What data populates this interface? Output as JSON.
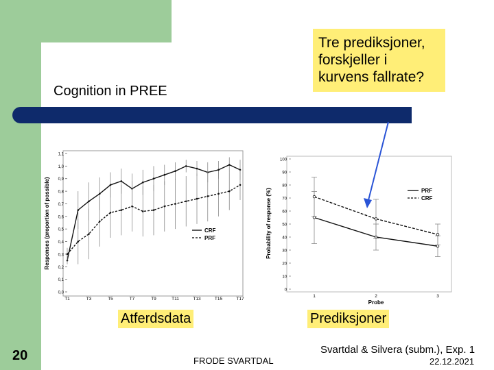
{
  "slide": {
    "title": "Cognition in PREE",
    "callout": "Tre prediksjoner, forskjeller i kurvens fallrate?",
    "left_label": "Atferdsdata",
    "right_label": "Prediksjoner",
    "slide_number": "20",
    "footer": "FRODE SVARTDAL",
    "citation": "Svartdal & Silvera (subm.), Exp. 1",
    "date": "22.12.2021"
  },
  "colors": {
    "green": "#9dcc9a",
    "navy": "#0e2a6b",
    "highlight": "#ffee77",
    "arrow": "#2a54d6"
  },
  "chart_data": [
    {
      "type": "line",
      "ylabel": "Responses (proportion of possible)",
      "xlabel": "",
      "categories": [
        "T1",
        "T3",
        "T5",
        "T7",
        "T9",
        "T11",
        "T13",
        "T15",
        "T17"
      ],
      "y_ticks": [
        "0,0",
        "0,1",
        "0,2",
        "0,3",
        "0,4",
        "0,5",
        "0,6",
        "0,7",
        "0,8",
        "0,9",
        "1,0",
        "1,1"
      ],
      "ylim": [
        0,
        1.1
      ],
      "legend": "middle-right",
      "series": [
        {
          "name": "CRF",
          "style": "solid",
          "x": [
            1,
            2,
            3,
            4,
            5,
            6,
            7,
            8,
            9,
            10,
            11,
            12,
            13,
            14,
            15,
            16,
            17
          ],
          "values": [
            0.25,
            0.65,
            0.72,
            0.78,
            0.85,
            0.88,
            0.82,
            0.87,
            0.9,
            0.93,
            0.96,
            1.0,
            0.98,
            0.95,
            0.97,
            1.01,
            0.97
          ],
          "err": [
            0.03,
            0.15,
            0.15,
            0.13,
            0.1,
            0.1,
            0.12,
            0.1,
            0.1,
            0.08,
            0.07,
            0.05,
            0.06,
            0.08,
            0.07,
            0.06,
            0.08
          ]
        },
        {
          "name": "PRF",
          "style": "dashed",
          "x": [
            1,
            2,
            3,
            4,
            5,
            6,
            7,
            8,
            9,
            10,
            11,
            12,
            13,
            14,
            15,
            16,
            17
          ],
          "values": [
            0.3,
            0.4,
            0.46,
            0.56,
            0.63,
            0.65,
            0.68,
            0.64,
            0.65,
            0.68,
            0.7,
            0.72,
            0.74,
            0.76,
            0.78,
            0.8,
            0.85
          ],
          "err": [
            0.05,
            0.18,
            0.2,
            0.2,
            0.2,
            0.2,
            0.2,
            0.2,
            0.2,
            0.2,
            0.2,
            0.2,
            0.2,
            0.2,
            0.18,
            0.15,
            0.12
          ]
        }
      ]
    },
    {
      "type": "line",
      "ylabel": "Probability of response (%)",
      "xlabel": "Probe",
      "categories": [
        "1",
        "2",
        "3"
      ],
      "y_ticks": [
        "0",
        "10",
        "20",
        "30",
        "40",
        "50",
        "60",
        "70",
        "80",
        "90",
        "100"
      ],
      "ylim": [
        0,
        100
      ],
      "legend": "top-right",
      "series": [
        {
          "name": "PRF",
          "style": "solid",
          "values": [
            55,
            40,
            33
          ],
          "err": [
            20,
            10,
            8
          ]
        },
        {
          "name": "CRF",
          "style": "dashed",
          "values": [
            71,
            54,
            42
          ],
          "err": [
            15,
            15,
            8
          ]
        }
      ]
    }
  ]
}
